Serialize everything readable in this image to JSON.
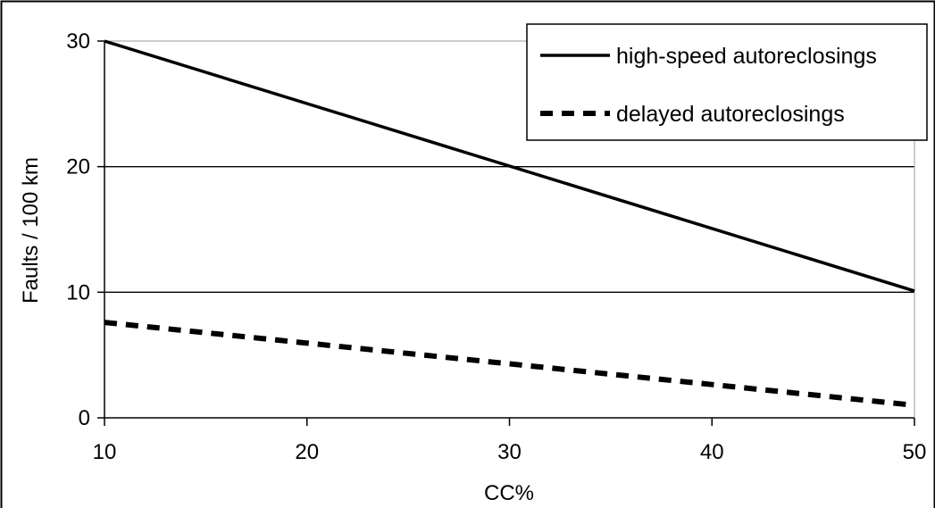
{
  "chart_data": {
    "type": "line",
    "xlabel": "CC%",
    "ylabel": "Faults / 100 km",
    "xlim": [
      10,
      50
    ],
    "ylim": [
      0,
      30
    ],
    "xticks": [
      "10",
      "20",
      "30",
      "40",
      "50"
    ],
    "yticks": [
      "0",
      "10",
      "20",
      "30"
    ],
    "grid": "horizontal",
    "legend_position": "top-right",
    "series": [
      {
        "name": "high-speed autoreclosings",
        "style": "solid",
        "color": "#000000",
        "x": [
          10,
          50
        ],
        "y": [
          30,
          10.1
        ]
      },
      {
        "name": "delayed autoreclosings",
        "style": "dashed",
        "color": "#000000",
        "x": [
          10,
          50
        ],
        "y": [
          7.6,
          1
        ]
      }
    ]
  }
}
